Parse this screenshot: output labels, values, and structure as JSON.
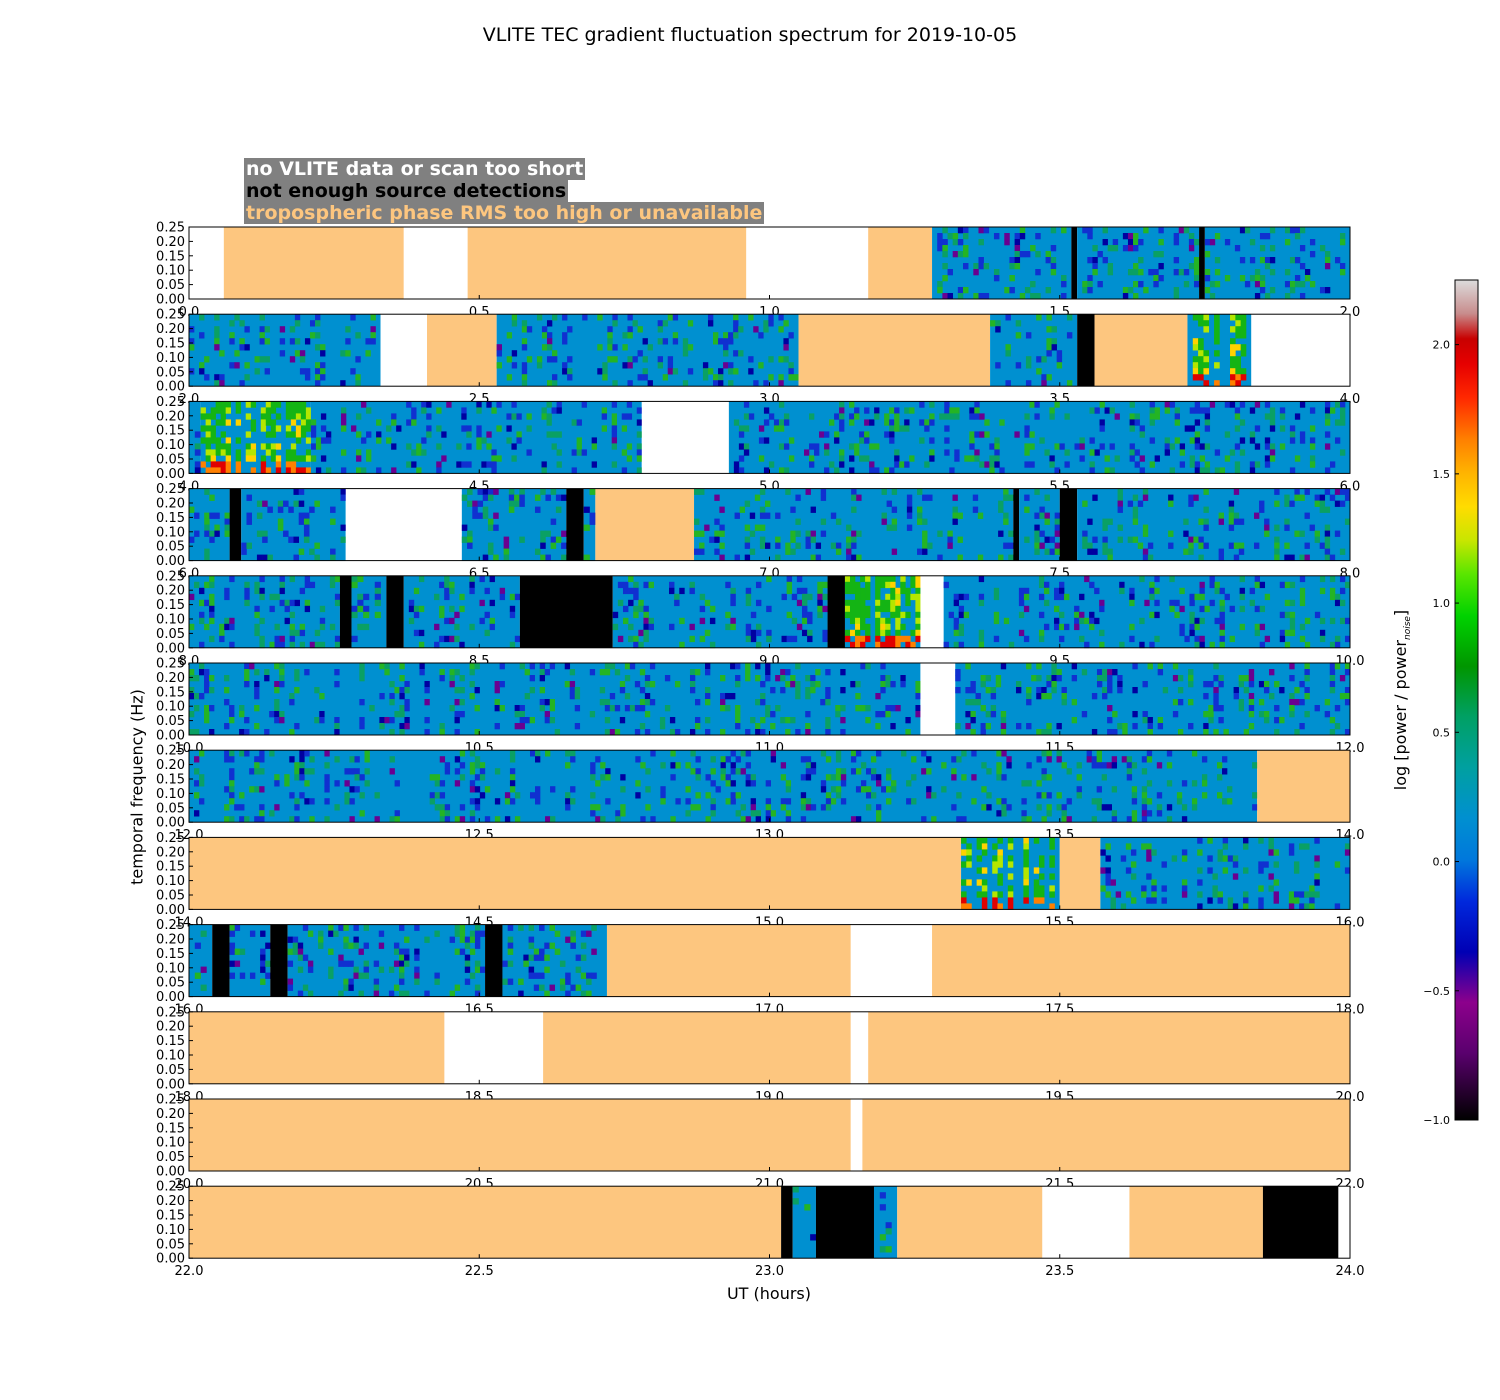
{
  "title": "VLITE TEC gradient fluctuation spectrum for 2019-10-05",
  "legend": [
    {
      "label": "no VLITE data or scan too short",
      "color": "#ffffff"
    },
    {
      "label": "not enough source detections",
      "color": "#000000"
    },
    {
      "label": "tropospheric phase RMS too high or unavailable",
      "color": "#fdc67f"
    }
  ],
  "colors": {
    "no_data": "#ffffff",
    "not_enough_detections": "#000000",
    "troposphere_flag": "#fdc67f",
    "background_spectrum": "#0090d0"
  },
  "chart_data": {
    "type": "heatmap",
    "title": "VLITE TEC gradient fluctuation spectrum for 2019-10-05",
    "xlabel": "UT (hours)",
    "ylabel": "temporal frequency (Hz)",
    "ylim": [
      0,
      0.25
    ],
    "ytick_labels": [
      "0.00",
      "0.05",
      "0.10",
      "0.15",
      "0.20",
      "0.25"
    ],
    "colorbar": {
      "label_main": "log [power / power",
      "label_sub": "noise",
      "label_end": "]",
      "range": [
        -1.0,
        2.25
      ],
      "tick_values": [
        -1.0,
        -0.5,
        0.0,
        0.5,
        1.0,
        1.5,
        2.0
      ],
      "tick_labels": [
        "−1.0",
        "−0.5",
        "0.0",
        "0.5",
        "1.0",
        "1.5",
        "2.0"
      ]
    },
    "panels": [
      {
        "xlim": [
          0,
          2
        ],
        "xticks": [
          "0.0",
          "0.5",
          "1.0",
          "1.5",
          "2.0"
        ],
        "segments": [
          {
            "s": 0,
            "e": 0.06,
            "k": "white"
          },
          {
            "s": 0.06,
            "e": 0.37,
            "k": "tropo"
          },
          {
            "s": 0.37,
            "e": 0.48,
            "k": "white"
          },
          {
            "s": 0.48,
            "e": 0.96,
            "k": "tropo"
          },
          {
            "s": 0.96,
            "e": 1.17,
            "k": "white"
          },
          {
            "s": 1.17,
            "e": 1.28,
            "k": "tropo"
          },
          {
            "s": 1.28,
            "e": 1.52,
            "k": "spec"
          },
          {
            "s": 1.52,
            "e": 1.53,
            "k": "black"
          },
          {
            "s": 1.53,
            "e": 1.74,
            "k": "spec"
          },
          {
            "s": 1.74,
            "e": 1.75,
            "k": "black"
          },
          {
            "s": 1.75,
            "e": 2.0,
            "k": "spec"
          }
        ]
      },
      {
        "xlim": [
          2,
          4
        ],
        "xticks": [
          "2.0",
          "2.5",
          "3.0",
          "3.5",
          "4.0"
        ],
        "segments": [
          {
            "s": 2.0,
            "e": 2.33,
            "k": "spec"
          },
          {
            "s": 2.33,
            "e": 2.41,
            "k": "white"
          },
          {
            "s": 2.41,
            "e": 2.53,
            "k": "tropo"
          },
          {
            "s": 2.53,
            "e": 3.05,
            "k": "spec"
          },
          {
            "s": 3.05,
            "e": 3.38,
            "k": "tropo"
          },
          {
            "s": 3.38,
            "e": 3.53,
            "k": "spec"
          },
          {
            "s": 3.53,
            "e": 3.56,
            "k": "black"
          },
          {
            "s": 3.56,
            "e": 3.72,
            "k": "tropo"
          },
          {
            "s": 3.72,
            "e": 3.83,
            "k": "hot"
          },
          {
            "s": 3.83,
            "e": 4.0,
            "k": "white"
          }
        ]
      },
      {
        "xlim": [
          4,
          6
        ],
        "xticks": [
          "4.0",
          "4.5",
          "5.0",
          "5.5",
          "6.0"
        ],
        "segments": [
          {
            "s": 4.0,
            "e": 4.02,
            "k": "spec"
          },
          {
            "s": 4.02,
            "e": 4.21,
            "k": "hot"
          },
          {
            "s": 4.21,
            "e": 4.78,
            "k": "spec"
          },
          {
            "s": 4.78,
            "e": 4.93,
            "k": "white"
          },
          {
            "s": 4.93,
            "e": 6.0,
            "k": "spec"
          }
        ]
      },
      {
        "xlim": [
          6,
          8
        ],
        "xticks": [
          "6.0",
          "6.5",
          "7.0",
          "7.5",
          "8.0"
        ],
        "segments": [
          {
            "s": 6.0,
            "e": 6.07,
            "k": "spec"
          },
          {
            "s": 6.07,
            "e": 6.09,
            "k": "black"
          },
          {
            "s": 6.09,
            "e": 6.27,
            "k": "spec"
          },
          {
            "s": 6.27,
            "e": 6.47,
            "k": "white"
          },
          {
            "s": 6.47,
            "e": 6.65,
            "k": "spec"
          },
          {
            "s": 6.65,
            "e": 6.68,
            "k": "black"
          },
          {
            "s": 6.68,
            "e": 6.7,
            "k": "spec"
          },
          {
            "s": 6.7,
            "e": 6.87,
            "k": "tropo"
          },
          {
            "s": 6.87,
            "e": 7.42,
            "k": "spec"
          },
          {
            "s": 7.42,
            "e": 7.43,
            "k": "black"
          },
          {
            "s": 7.43,
            "e": 7.5,
            "k": "spec"
          },
          {
            "s": 7.5,
            "e": 7.53,
            "k": "black"
          },
          {
            "s": 7.53,
            "e": 8.0,
            "k": "spec"
          }
        ]
      },
      {
        "xlim": [
          8,
          10
        ],
        "xticks": [
          "8.0",
          "8.5",
          "9.0",
          "9.5",
          "10.0"
        ],
        "segments": [
          {
            "s": 8.0,
            "e": 8.26,
            "k": "spec"
          },
          {
            "s": 8.26,
            "e": 8.28,
            "k": "black"
          },
          {
            "s": 8.28,
            "e": 8.34,
            "k": "spec"
          },
          {
            "s": 8.34,
            "e": 8.37,
            "k": "black"
          },
          {
            "s": 8.37,
            "e": 8.57,
            "k": "spec"
          },
          {
            "s": 8.57,
            "e": 8.73,
            "k": "black"
          },
          {
            "s": 8.73,
            "e": 9.1,
            "k": "spec"
          },
          {
            "s": 9.1,
            "e": 9.13,
            "k": "black"
          },
          {
            "s": 9.13,
            "e": 9.26,
            "k": "hot"
          },
          {
            "s": 9.26,
            "e": 9.3,
            "k": "white"
          },
          {
            "s": 9.3,
            "e": 10.0,
            "k": "spec"
          }
        ]
      },
      {
        "xlim": [
          10,
          12
        ],
        "xticks": [
          "10.0",
          "10.5",
          "11.0",
          "11.5",
          "12.0"
        ],
        "segments": [
          {
            "s": 10.0,
            "e": 11.26,
            "k": "spec"
          },
          {
            "s": 11.26,
            "e": 11.32,
            "k": "white"
          },
          {
            "s": 11.32,
            "e": 12.0,
            "k": "spec"
          }
        ]
      },
      {
        "xlim": [
          12,
          14
        ],
        "xticks": [
          "12.0",
          "12.5",
          "13.0",
          "13.5",
          "14.0"
        ],
        "segments": [
          {
            "s": 12.0,
            "e": 13.84,
            "k": "spec"
          },
          {
            "s": 13.84,
            "e": 14.0,
            "k": "tropo"
          }
        ]
      },
      {
        "xlim": [
          14,
          16
        ],
        "xticks": [
          "14.0",
          "14.5",
          "15.0",
          "15.5",
          "16.0"
        ],
        "segments": [
          {
            "s": 14.0,
            "e": 15.33,
            "k": "tropo"
          },
          {
            "s": 15.33,
            "e": 15.5,
            "k": "hot"
          },
          {
            "s": 15.5,
            "e": 15.57,
            "k": "tropo"
          },
          {
            "s": 15.57,
            "e": 16.0,
            "k": "spec"
          }
        ]
      },
      {
        "xlim": [
          16,
          18
        ],
        "xticks": [
          "16.0",
          "16.5",
          "17.0",
          "17.5",
          "18.0"
        ],
        "segments": [
          {
            "s": 16.0,
            "e": 16.04,
            "k": "spec"
          },
          {
            "s": 16.04,
            "e": 16.07,
            "k": "black"
          },
          {
            "s": 16.07,
            "e": 16.14,
            "k": "spec"
          },
          {
            "s": 16.14,
            "e": 16.17,
            "k": "black"
          },
          {
            "s": 16.17,
            "e": 16.51,
            "k": "spec"
          },
          {
            "s": 16.51,
            "e": 16.54,
            "k": "black"
          },
          {
            "s": 16.54,
            "e": 16.72,
            "k": "spec"
          },
          {
            "s": 16.72,
            "e": 17.14,
            "k": "tropo"
          },
          {
            "s": 17.14,
            "e": 17.28,
            "k": "white"
          },
          {
            "s": 17.28,
            "e": 18.0,
            "k": "tropo"
          }
        ]
      },
      {
        "xlim": [
          18,
          20
        ],
        "xticks": [
          "18.0",
          "18.5",
          "19.0",
          "19.5",
          "20.0"
        ],
        "segments": [
          {
            "s": 18.0,
            "e": 18.44,
            "k": "tropo"
          },
          {
            "s": 18.44,
            "e": 18.61,
            "k": "white"
          },
          {
            "s": 18.61,
            "e": 19.14,
            "k": "tropo"
          },
          {
            "s": 19.14,
            "e": 19.17,
            "k": "white"
          },
          {
            "s": 19.17,
            "e": 20.0,
            "k": "tropo"
          }
        ]
      },
      {
        "xlim": [
          20,
          22
        ],
        "xticks": [
          "20.0",
          "20.5",
          "21.0",
          "21.5",
          "22.0"
        ],
        "segments": [
          {
            "s": 20.0,
            "e": 21.14,
            "k": "tropo"
          },
          {
            "s": 21.14,
            "e": 21.16,
            "k": "white"
          },
          {
            "s": 21.16,
            "e": 22.0,
            "k": "tropo"
          }
        ]
      },
      {
        "xlim": [
          22,
          24
        ],
        "xticks": [
          "22.0",
          "22.5",
          "23.0",
          "23.5",
          "24.0"
        ],
        "segments": [
          {
            "s": 22.0,
            "e": 23.02,
            "k": "tropo"
          },
          {
            "s": 23.02,
            "e": 23.04,
            "k": "black"
          },
          {
            "s": 23.04,
            "e": 23.08,
            "k": "spec"
          },
          {
            "s": 23.08,
            "e": 23.18,
            "k": "black"
          },
          {
            "s": 23.18,
            "e": 23.22,
            "k": "spec"
          },
          {
            "s": 23.22,
            "e": 23.47,
            "k": "tropo"
          },
          {
            "s": 23.47,
            "e": 23.62,
            "k": "white"
          },
          {
            "s": 23.62,
            "e": 23.85,
            "k": "tropo"
          },
          {
            "s": 23.85,
            "e": 23.98,
            "k": "black"
          },
          {
            "s": 23.98,
            "e": 24.0,
            "k": "white"
          }
        ]
      }
    ]
  }
}
